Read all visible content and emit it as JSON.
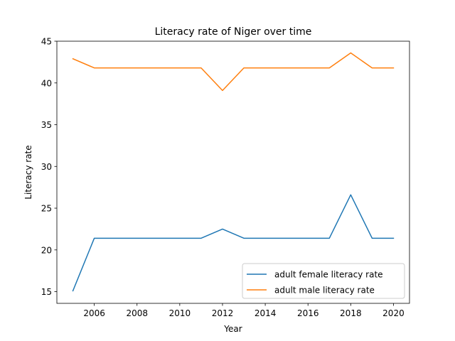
{
  "chart_data": {
    "type": "line",
    "title": "Literacy rate of Niger over time",
    "xlabel": "Year",
    "ylabel": "Literacy rate",
    "x": [
      2005,
      2006,
      2007,
      2008,
      2009,
      2010,
      2011,
      2012,
      2013,
      2014,
      2015,
      2016,
      2017,
      2018,
      2019,
      2020
    ],
    "series": [
      {
        "name": "adult female literacy rate",
        "color": "#1f77b4",
        "values": [
          15.1,
          21.4,
          21.4,
          21.4,
          21.4,
          21.4,
          21.4,
          22.5,
          21.4,
          21.4,
          21.4,
          21.4,
          21.4,
          26.6,
          21.4,
          21.4
        ]
      },
      {
        "name": "adult male literacy rate",
        "color": "#ff7f0e",
        "values": [
          42.9,
          41.8,
          41.8,
          41.8,
          41.8,
          41.8,
          41.8,
          39.1,
          41.8,
          41.8,
          41.8,
          41.8,
          41.8,
          43.6,
          41.8,
          41.8
        ]
      }
    ],
    "xlim": [
      2004.25,
      2020.75
    ],
    "ylim": [
      13.6,
      45
    ],
    "xticks": [
      "2006",
      "2008",
      "2010",
      "2012",
      "2014",
      "2016",
      "2018",
      "2020"
    ],
    "yticks": [
      "15",
      "20",
      "25",
      "30",
      "35",
      "40",
      "45"
    ],
    "grid": false,
    "legend_position": "lower-right"
  }
}
